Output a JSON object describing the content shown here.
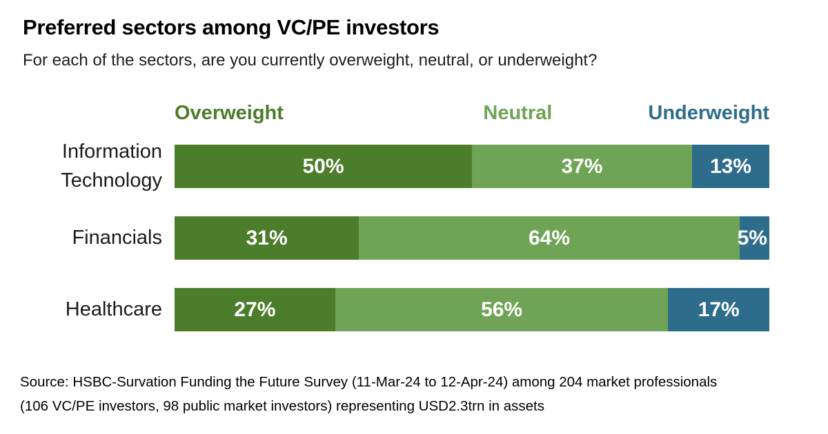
{
  "title": "Preferred sectors among VC/PE investors",
  "subtitle": "For each of the sectors, are you currently overweight, neutral, or underweight?",
  "chart_data": {
    "type": "bar",
    "orientation": "horizontal",
    "stacked": true,
    "categories": [
      "Information Technology",
      "Financials",
      "Healthcare"
    ],
    "series": [
      {
        "name": "Overweight",
        "color": "#4c7d2b",
        "values": [
          50,
          31,
          27
        ]
      },
      {
        "name": "Neutral",
        "color": "#6fa355",
        "values": [
          37,
          64,
          56
        ]
      },
      {
        "name": "Underweight",
        "color": "#2e6c8c",
        "values": [
          13,
          5,
          17
        ]
      }
    ],
    "value_suffix": "%",
    "xlim": [
      0,
      100
    ],
    "grid": false,
    "legend_position": "top",
    "data_labels": "inside-white-bold"
  },
  "source": {
    "line1": "Source: HSBC-Survation Funding the Future Survey (11-Mar-24 to 12-Apr-24) among 204 market professionals",
    "line2": "(106 VC/PE investors, 98 public market investors) representing USD2.3trn in assets"
  }
}
